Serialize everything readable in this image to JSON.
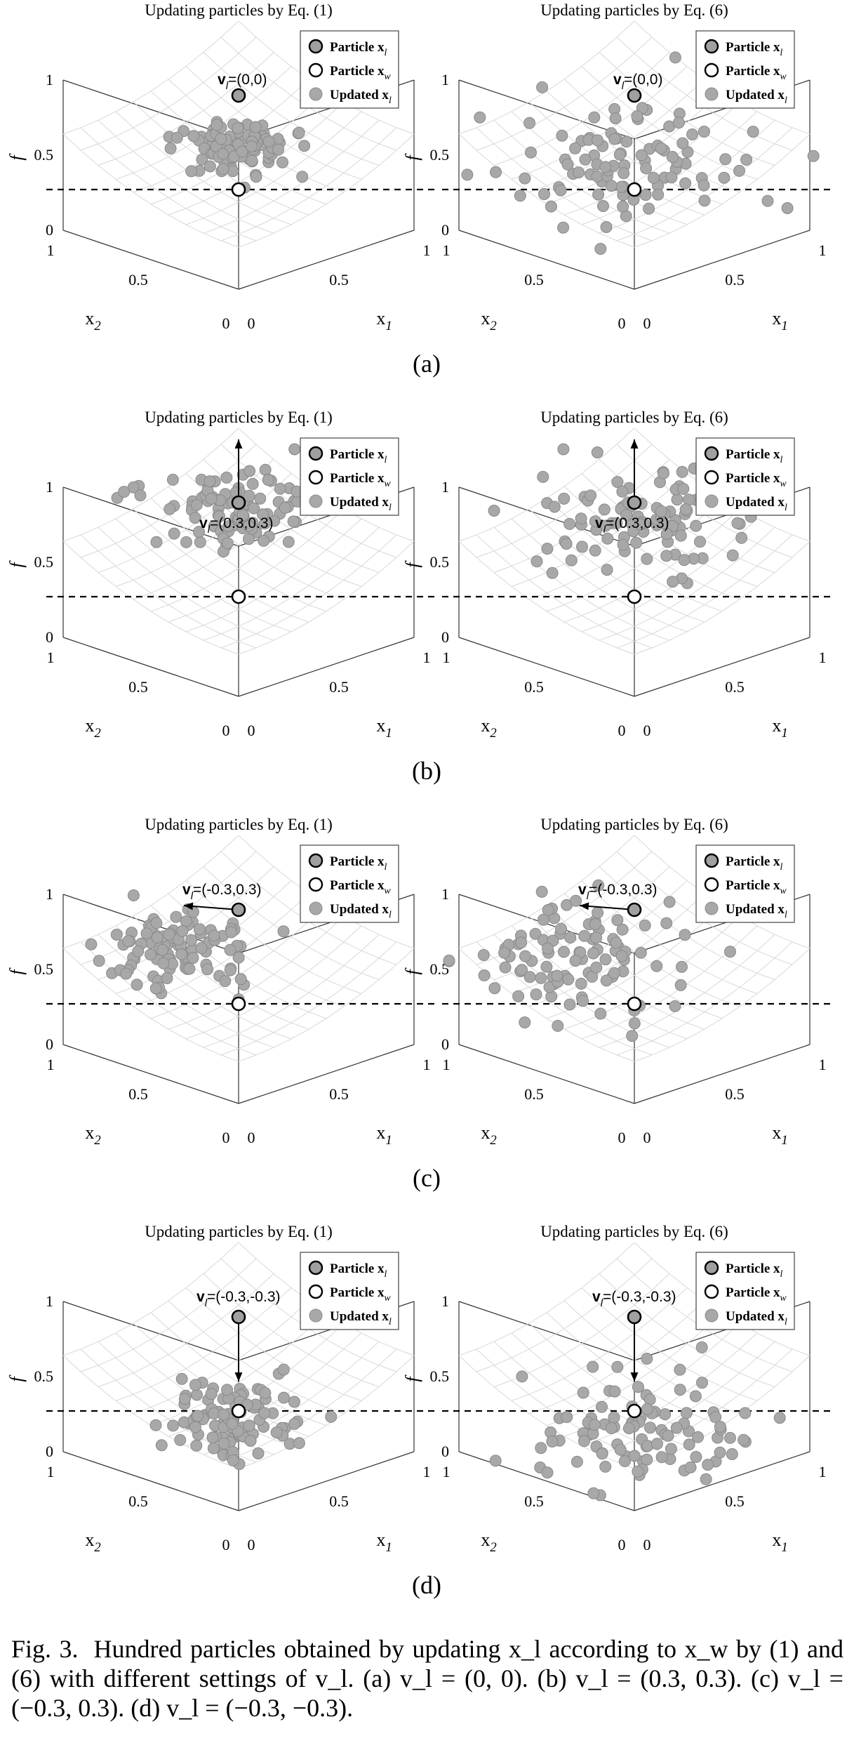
{
  "figure": {
    "panel_rows": [
      {
        "tag": "(a)",
        "left": {
          "title": "Updating particles by Eq. (1)",
          "velocity_label": "v_l=(0,0)",
          "velocity": [
            0,
            0
          ],
          "seed": 11,
          "spread": 0.07
        },
        "right": {
          "title": "Updating particles by Eq. (6)",
          "velocity_label": "v_l=(0,0)",
          "velocity": [
            0,
            0
          ],
          "seed": 12,
          "spread": 0.16
        }
      },
      {
        "tag": "(b)",
        "left": {
          "title": "Updating particles by Eq. (1)",
          "velocity_label": "v_l=(0.3,0.3)",
          "velocity": [
            0.3,
            0.3
          ],
          "seed": 21,
          "spread": 0.1
        },
        "right": {
          "title": "Updating particles by Eq. (6)",
          "velocity_label": "v_l=(0.3,0.3)",
          "velocity": [
            0.3,
            0.3
          ],
          "seed": 22,
          "spread": 0.12
        }
      },
      {
        "tag": "(c)",
        "left": {
          "title": "Updating particles by Eq. (1)",
          "velocity_label": "v_l=(-0.3,0.3)",
          "velocity": [
            -0.3,
            0.3
          ],
          "seed": 31,
          "spread": 0.1
        },
        "right": {
          "title": "Updating particles by Eq. (6)",
          "velocity_label": "v_l=(-0.3,0.3)",
          "velocity": [
            -0.3,
            0.3
          ],
          "seed": 32,
          "spread": 0.15
        }
      },
      {
        "tag": "(d)",
        "left": {
          "title": "Updating particles by Eq. (1)",
          "velocity_label": "v_l=(-0.3,-0.3)",
          "velocity": [
            -0.3,
            -0.3
          ],
          "seed": 41,
          "spread": 0.09
        },
        "right": {
          "title": "Updating particles by Eq. (6)",
          "velocity_label": "v_l=(-0.3,-0.3)",
          "velocity": [
            -0.3,
            -0.3
          ],
          "seed": 42,
          "spread": 0.15
        }
      }
    ],
    "legend": [
      "Particle x_l",
      "Particle x_w",
      "Updated x_l"
    ],
    "axis_labels": {
      "f": "f",
      "x1": "x_1",
      "x2": "x_2"
    },
    "ticks": {
      "f": [
        "0",
        "0.5",
        "1"
      ],
      "x1": [
        "0",
        "0.5",
        "1"
      ],
      "x2": [
        "0",
        "0.5",
        "1"
      ]
    },
    "colors": {
      "particle_fill": "#a8a8a8",
      "legend_xl_fill": "#a0a0a0",
      "grid": "#d8d8d8",
      "axes": "#333333"
    },
    "particle_count": 100
  },
  "caption": {
    "label": "Fig. 3.",
    "text": "Hundred particles obtained by updating x_l according to x_w by (1) and (6) with different settings of v_l. (a) v_l = (0, 0). (b) v_l = (0.3, 0.3). (c) v_l = (−0.3, 0.3). (d) v_l = (−0.3, −0.3)."
  }
}
